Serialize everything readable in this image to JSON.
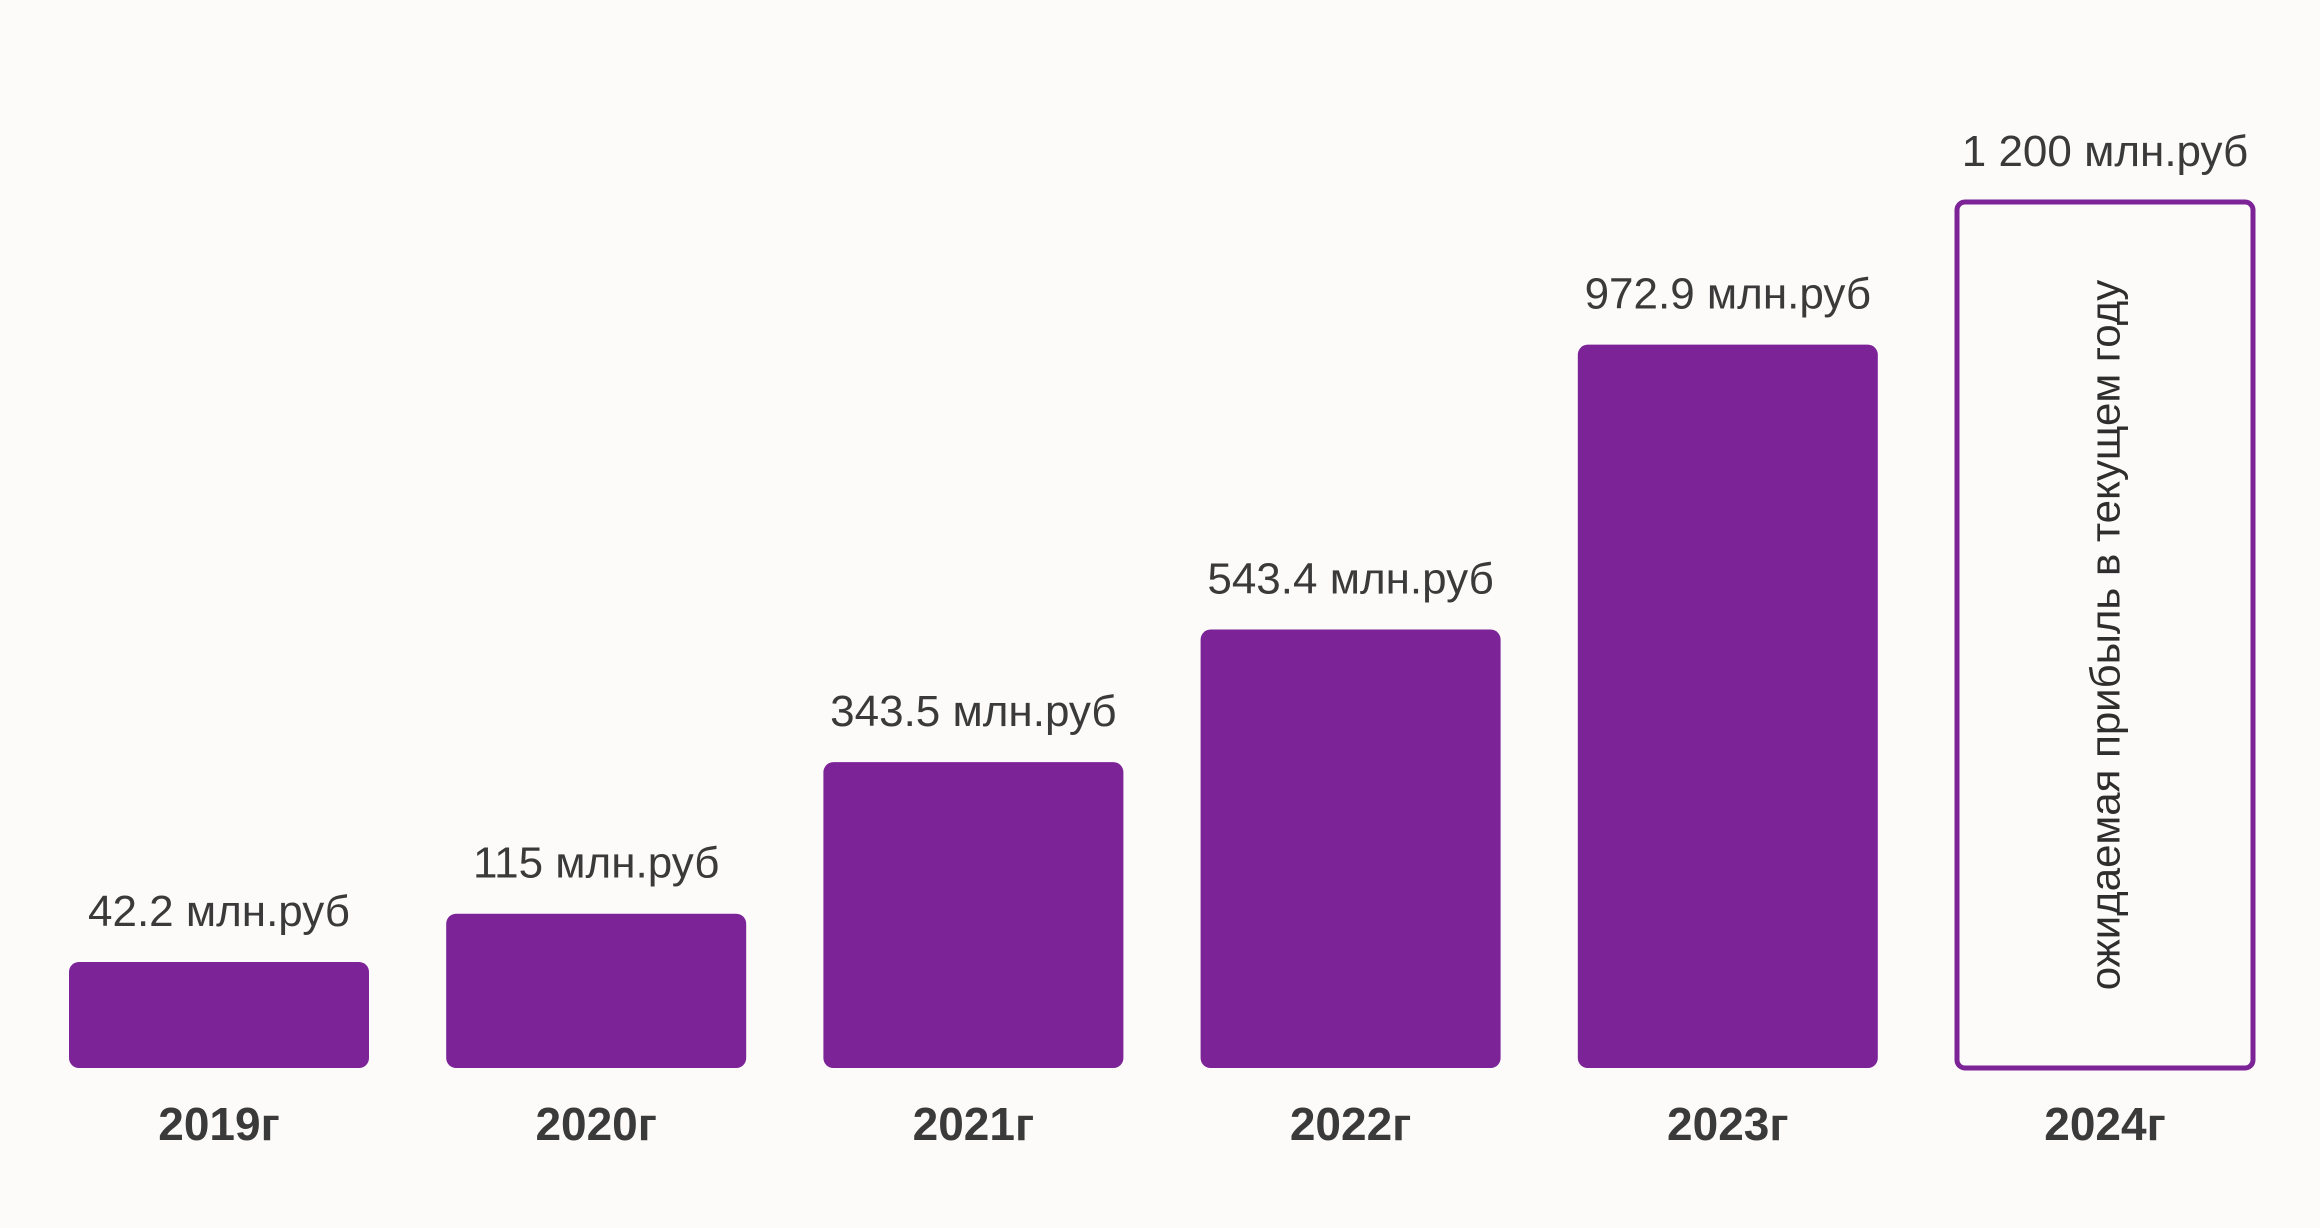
{
  "chart_data": {
    "type": "bar",
    "title": "",
    "xlabel": "",
    "ylabel": "",
    "ylim": [
      0,
      1200
    ],
    "grid": false,
    "unit": "млн.руб",
    "categories": [
      "2019г",
      "2020г",
      "2021г",
      "2022г",
      "2023г",
      "2024г"
    ],
    "values": [
      42.2,
      115,
      343.5,
      543.4,
      972.9,
      1200
    ],
    "value_labels": [
      "42.2 млн.руб",
      "115 млн.руб",
      "343.5 млн.руб",
      "543.4 млн.руб",
      "972.9 млн.руб",
      "1 200 млн.руб"
    ],
    "bar_styles": [
      "filled",
      "filled",
      "filled",
      "filled",
      "filled",
      "outline"
    ],
    "annotations": [
      {
        "category": "2024г",
        "text": "ожидаемая прибыль в текущем году"
      }
    ]
  },
  "colors": {
    "bar": "#7b2397",
    "bar_outline": "#7b2397",
    "text": "#3a3a3a",
    "background": "#fdfbfa"
  }
}
